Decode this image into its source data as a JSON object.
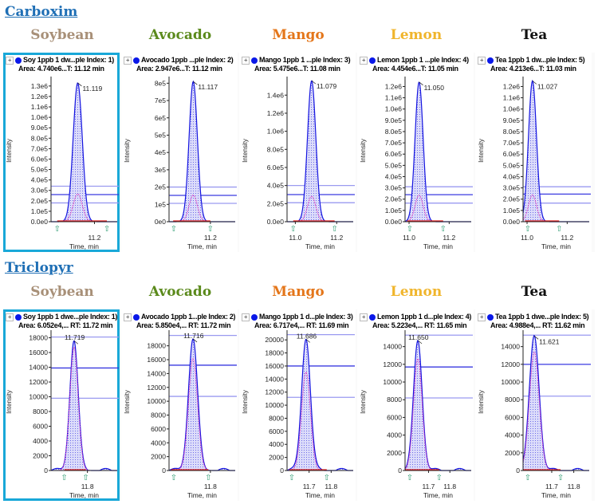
{
  "sample_names": [
    "Soybean",
    "Avocado",
    "Mango",
    "Lemon",
    "Tea"
  ],
  "sample_colors": [
    "#a89078",
    "#5b8a1c",
    "#e4761a",
    "#f0b52c",
    "#111111"
  ],
  "axis": {
    "ylabel": "Intensity",
    "xlabel": "Time, min"
  },
  "chart_data": [
    {
      "type": "line",
      "title": "Carboxim",
      "panels": [
        {
          "l1": "Soy 1ppb 1 dw...ple Index: 1)",
          "l2": "Area: 4.740e6...T: 11.12 min",
          "yticks": [
            "0.0e0",
            "1.0e5",
            "2.0e5",
            "3.0e5",
            "4.0e5",
            "5.0e5",
            "6.0e5",
            "7.0e5",
            "8.0e5",
            "9.0e5",
            "1.0e6",
            "1.1e6",
            "1.2e6",
            "1.3e6"
          ],
          "ystep": 100000,
          "ymax": 1360000,
          "xlim": [
            10.99,
            11.31
          ],
          "xticks": [
            11.2
          ],
          "rt": 11.119,
          "rt_label": "11.119",
          "peak": 1330000,
          "width": 0.022,
          "ratio": 0.2,
          "lines": [
            340000,
            260000,
            180000
          ],
          "markers": [
            11.02,
            11.26
          ]
        },
        {
          "l1": "Avocado 1ppb ...ple Index: 2)",
          "l2": "Area: 2.947e6...T: 11.12 min",
          "yticks": [
            "0e0",
            "1e5",
            "2e5",
            "3e5",
            "4e5",
            "5e5",
            "6e5",
            "7e5",
            "8e5"
          ],
          "ystep": 100000,
          "ymax": 820000,
          "xlim": [
            11.0,
            11.32
          ],
          "xticks": [
            11.2
          ],
          "rt": 11.117,
          "rt_label": "11.117",
          "peak": 810000,
          "width": 0.02,
          "ratio": 0.19,
          "lines": [
            200000,
            152000,
            106000
          ],
          "markers": [
            11.02,
            11.2
          ]
        },
        {
          "l1": "Mango 1ppb 1 ...ple Index: 3)",
          "l2": "Area: 5.475e6...T: 11.08 min",
          "yticks": [
            "0.0e0",
            "2.0e5",
            "4.0e5",
            "6.0e5",
            "8.0e5",
            "1.0e6",
            "1.2e6",
            "1.4e6"
          ],
          "ystep": 200000,
          "ymax": 1570000,
          "xlim": [
            10.96,
            11.28
          ],
          "xticks": [
            11.0,
            11.2
          ],
          "rt": 11.079,
          "rt_label": "11.079",
          "peak": 1560000,
          "width": 0.02,
          "ratio": 0.18,
          "lines": [
            400000,
            300000,
            210000
          ],
          "markers": [
            10.99,
            11.19
          ]
        },
        {
          "l1": "Lemon 1ppb 1 ...ple Index: 4)",
          "l2": "Area: 4.454e6...T: 11.05 min",
          "yticks": [
            "0.0e0",
            "1.0e5",
            "2.0e5",
            "3.0e5",
            "4.0e5",
            "5.0e5",
            "6.0e5",
            "7.0e5",
            "8.0e5",
            "9.0e5",
            "1.0e6",
            "1.1e6",
            "1.2e6"
          ],
          "ystep": 100000,
          "ymax": 1260000,
          "xlim": [
            10.98,
            11.31
          ],
          "xticks": [
            11.0,
            11.2
          ],
          "rt": 11.05,
          "rt_label": "11.050",
          "peak": 1240000,
          "width": 0.02,
          "ratio": 0.19,
          "lines": [
            310000,
            240000,
            165000
          ],
          "markers": [
            10.99,
            11.17
          ]
        },
        {
          "l1": "Tea 1ppb 1 dw...ple Index: 5)",
          "l2": "Area: 4.213e6...T: 11.03 min",
          "yticks": [
            "0.0e0",
            "1.0e5",
            "2.0e5",
            "3.0e5",
            "4.0e5",
            "5.0e5",
            "6.0e5",
            "7.0e5",
            "8.0e5",
            "9.0e5",
            "1.0e6",
            "1.1e6",
            "1.2e6"
          ],
          "ystep": 100000,
          "ymax": 1260000,
          "xlim": [
            10.98,
            11.31
          ],
          "xticks": [
            11.0,
            11.2
          ],
          "rt": 11.027,
          "rt_label": "11.027",
          "peak": 1250000,
          "width": 0.02,
          "ratio": 0.19,
          "lines": [
            310000,
            245000,
            165000
          ],
          "markers": [
            10.99,
            11.16
          ]
        }
      ]
    },
    {
      "type": "line",
      "title": "Triclopyr",
      "panels": [
        {
          "l1": "Soy 1ppb 1 dwe...ple Index: 1)",
          "l2": "Area: 6.052e4,... RT: 11.72 min",
          "yticks": [
            "0",
            "2000",
            "4000",
            "6000",
            "8000",
            "10000",
            "12000",
            "14000",
            "16000",
            "18000"
          ],
          "ystep": 2000,
          "ymax": 18600,
          "xlim": [
            11.58,
            11.98
          ],
          "xticks": [
            11.8
          ],
          "rt": 11.719,
          "rt_label": "11.719",
          "peak": 17600,
          "width": 0.025,
          "ratio": 0.95,
          "lines": [
            18100,
            13900,
            9800
          ],
          "markers": [
            11.66,
            11.79
          ]
        },
        {
          "l1": "Avocado 1ppb 1...ple Index: 2)",
          "l2": "Area: 5.850e4,... RT: 11.72 min",
          "yticks": [
            "0",
            "2000",
            "4000",
            "6000",
            "8000",
            "10000",
            "12000",
            "14000",
            "16000",
            "18000"
          ],
          "ystep": 2000,
          "ymax": 19800,
          "xlim": [
            11.6,
            11.92
          ],
          "xticks": [
            11.8
          ],
          "rt": 11.716,
          "rt_label": "11.716",
          "peak": 19000,
          "width": 0.022,
          "ratio": 0.85,
          "lines": [
            19500,
            15200,
            10700
          ],
          "markers": [
            11.61,
            11.79
          ]
        },
        {
          "l1": "Mango 1ppb 1 d...ple Index: 3)",
          "l2": "Area: 6.717e4,... RT: 11.69 min",
          "yticks": [
            "0",
            "2000",
            "4000",
            "6000",
            "8000",
            "10000",
            "12000",
            "14000",
            "16000",
            "18000",
            "20000"
          ],
          "ystep": 2000,
          "ymax": 21000,
          "xlim": [
            11.6,
            11.9
          ],
          "xticks": [
            11.7,
            11.8
          ],
          "rt": 11.686,
          "rt_label": "11.686",
          "peak": 20100,
          "width": 0.02,
          "ratio": 0.75,
          "lines": [
            20800,
            16000,
            11200
          ],
          "markers": [
            11.61,
            11.78
          ]
        },
        {
          "l1": "Lemon 1ppb 1 d...ple Index: 4)",
          "l2": "Area: 5.223e4,... RT: 11.65 min",
          "yticks": [
            "0",
            "2000",
            "4000",
            "6000",
            "8000",
            "10000",
            "12000",
            "14000"
          ],
          "ystep": 2000,
          "ymax": 15500,
          "xlim": [
            11.59,
            11.9
          ],
          "xticks": [
            11.7,
            11.8
          ],
          "rt": 11.65,
          "rt_label": "11.650",
          "peak": 14700,
          "width": 0.02,
          "ratio": 0.86,
          "lines": [
            15300,
            11700,
            8200
          ],
          "markers": [
            11.59,
            11.75
          ]
        },
        {
          "l1": "Tea 1ppb 1 dwe...ple Index: 5)",
          "l2": "Area: 4.988e4,... RT: 11.62 min",
          "yticks": [
            "0",
            "2000",
            "4000",
            "6000",
            "8000",
            "10000",
            "12000",
            "14000"
          ],
          "ystep": 2000,
          "ymax": 15500,
          "xlim": [
            11.57,
            11.87
          ],
          "xticks": [
            11.7,
            11.8
          ],
          "rt": 11.621,
          "rt_label": "11.621",
          "peak": 15200,
          "width": 0.022,
          "ratio": 0.88,
          "lines": [
            15300,
            12000,
            8400
          ],
          "markers": [
            11.57,
            11.74
          ]
        }
      ]
    }
  ]
}
